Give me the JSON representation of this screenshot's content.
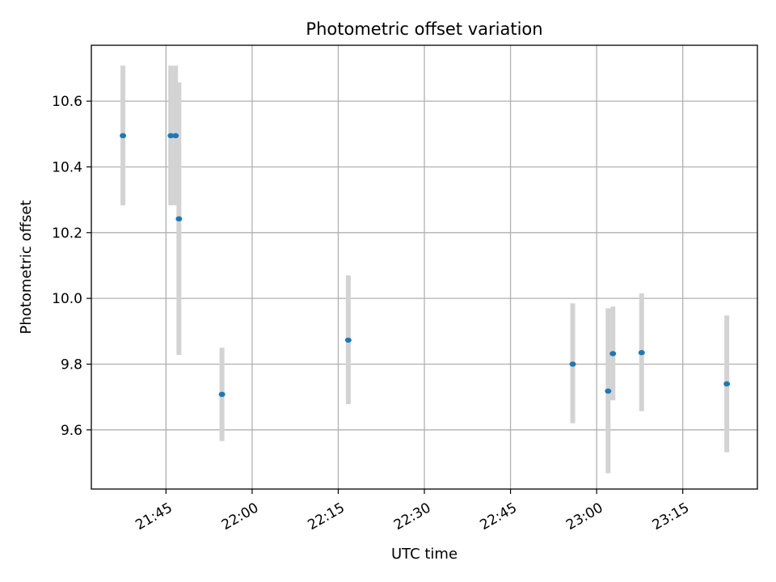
{
  "chart_data": {
    "type": "scatter",
    "title": "Photometric offset variation",
    "xlabel": "UTC time",
    "ylabel": "Photometric offset",
    "xlim": [
      "21:32:00",
      "23:28:00"
    ],
    "ylim": [
      9.42,
      10.77
    ],
    "x_ticks": [
      "21:45",
      "22:00",
      "22:15",
      "22:30",
      "22:45",
      "23:00",
      "23:15"
    ],
    "y_ticks": [
      9.6,
      9.8,
      10.0,
      10.2,
      10.4,
      10.6
    ],
    "grid": true,
    "point_color": "#1f77b4",
    "errorbar_color": "#d3d3d3",
    "points": [
      {
        "time": "21:37:30",
        "value": 10.495,
        "err_low": 10.283,
        "err_high": 10.708
      },
      {
        "time": "21:45:50",
        "value": 10.495,
        "err_low": 10.283,
        "err_high": 10.708
      },
      {
        "time": "21:46:40",
        "value": 10.495,
        "err_low": 10.283,
        "err_high": 10.708
      },
      {
        "time": "21:47:15",
        "value": 10.242,
        "err_low": 9.828,
        "err_high": 10.657
      },
      {
        "time": "21:54:45",
        "value": 9.708,
        "err_low": 9.566,
        "err_high": 9.85
      },
      {
        "time": "22:16:45",
        "value": 9.873,
        "err_low": 9.678,
        "err_high": 10.07
      },
      {
        "time": "22:55:50",
        "value": 9.8,
        "err_low": 9.62,
        "err_high": 9.985
      },
      {
        "time": "23:02:00",
        "value": 9.718,
        "err_low": 9.468,
        "err_high": 9.97
      },
      {
        "time": "23:02:50",
        "value": 9.832,
        "err_low": 9.69,
        "err_high": 9.975
      },
      {
        "time": "23:07:50",
        "value": 9.835,
        "err_low": 9.657,
        "err_high": 10.015
      },
      {
        "time": "23:22:40",
        "value": 9.74,
        "err_low": 9.532,
        "err_high": 9.948
      }
    ]
  }
}
